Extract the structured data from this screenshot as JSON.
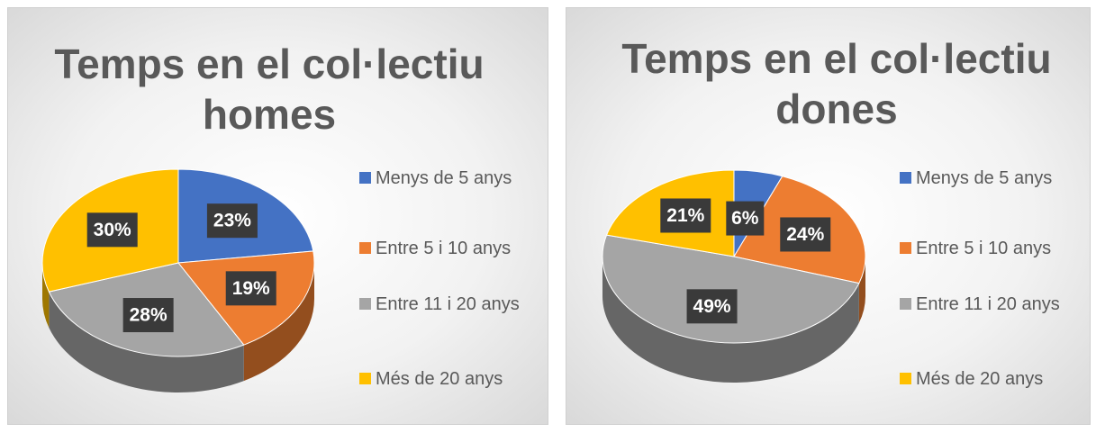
{
  "chart_data": [
    {
      "type": "pie",
      "title": "Temps en el col·lectiu homes",
      "categories": [
        "Menys de 5 anys",
        "Entre 5 i 10 anys",
        "Entre 11 i 20 anys",
        "Més de 20 anys"
      ],
      "values": [
        23,
        19,
        28,
        30
      ],
      "value_labels": [
        "23%",
        "19%",
        "28%",
        "30%"
      ],
      "colors": [
        "#4472c4",
        "#ed7d31",
        "#a5a5a5",
        "#ffc000"
      ],
      "legend": "right"
    },
    {
      "type": "pie",
      "title": "Temps en el col·lectiu dones",
      "categories": [
        "Menys de 5 anys",
        "Entre 5 i 10 anys",
        "Entre 11 i 20 anys",
        "Més de 20 anys"
      ],
      "values": [
        6,
        24,
        49,
        21
      ],
      "value_labels": [
        "6%",
        "24%",
        "49%",
        "21%"
      ],
      "colors": [
        "#4472c4",
        "#ed7d31",
        "#a5a5a5",
        "#ffc000"
      ],
      "legend": "right"
    }
  ]
}
